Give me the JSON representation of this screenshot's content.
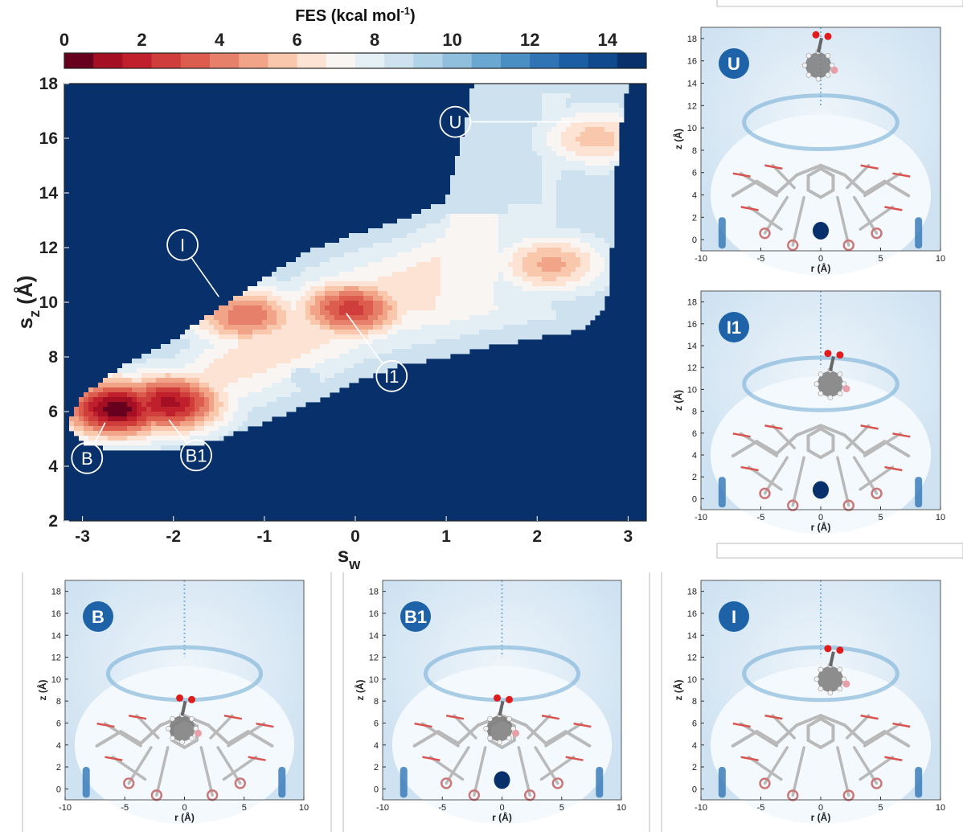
{
  "colorbar": {
    "title_main": "FES (kcal mol",
    "title_sup": "-1",
    "title_end": ")",
    "ticks": [
      "0",
      "2",
      "4",
      "6",
      "8",
      "10",
      "12",
      "14"
    ],
    "range": [
      0,
      15
    ],
    "colors": [
      "#67001f",
      "#a50f24",
      "#c0202c",
      "#cf3e3b",
      "#dc5d4d",
      "#e7806a",
      "#f1a488",
      "#f8c7ac",
      "#fce3d3",
      "#f8f5f3",
      "#e4eef5",
      "#cde2ee",
      "#b1d3e7",
      "#8fbfdd",
      "#6aa8d1",
      "#4a8fc4",
      "#2f75b5",
      "#1c5ea4",
      "#104a8e",
      "#08306b"
    ]
  },
  "chart_data": {
    "type": "heatmap",
    "title": "",
    "xlabel": "s",
    "xlabel_sub": "w",
    "ylabel": "s",
    "ylabel_sub": "z",
    "ylabel_unit": " (Å)",
    "xlim": [
      -3.2,
      3.2
    ],
    "ylim": [
      2,
      18
    ],
    "xticks": [
      "-3",
      "-2",
      "-1",
      "0",
      "1",
      "2",
      "3"
    ],
    "yticks": [
      "2",
      "4",
      "6",
      "8",
      "10",
      "12",
      "14",
      "16",
      "18"
    ],
    "states": [
      {
        "name": "U",
        "x": 1.1,
        "y": 16.6,
        "target_x": 2.5,
        "target_y": 16.6
      },
      {
        "name": "I",
        "x": -1.9,
        "y": 12.1,
        "target_x": -1.5,
        "target_y": 10.2
      },
      {
        "name": "I1",
        "x": 0.4,
        "y": 7.3,
        "target_x": -0.1,
        "target_y": 9.6
      },
      {
        "name": "B",
        "x": -2.95,
        "y": 4.3,
        "target_x": -2.75,
        "target_y": 5.6
      },
      {
        "name": "B1",
        "x": -1.75,
        "y": 4.4,
        "target_x": -2.05,
        "target_y": 5.7
      }
    ],
    "basins": [
      {
        "x": -2.62,
        "y": 6.1,
        "depth": 0.2
      },
      {
        "x": -2.05,
        "y": 6.3,
        "depth": 1.2
      },
      {
        "x": -0.05,
        "y": 9.75,
        "depth": 2.6
      },
      {
        "x": -1.2,
        "y": 9.5,
        "depth": 3.8
      },
      {
        "x": 2.15,
        "y": 11.4,
        "depth": 5.0
      },
      {
        "x": 2.65,
        "y": 16.0,
        "depth": 5.6
      },
      {
        "x": 1.15,
        "y": 16.7,
        "depth": 10.0
      }
    ]
  },
  "panels": [
    {
      "id": "U",
      "label": "U",
      "xticks": [
        "-10",
        "-5",
        "0",
        "5",
        "10"
      ],
      "yticks": [
        "0",
        "2",
        "4",
        "6",
        "8",
        "10",
        "12",
        "14",
        "16",
        "18"
      ],
      "xlabel": "r (Å)",
      "ylabel": "z (Å)"
    },
    {
      "id": "I1",
      "label": "I1",
      "xticks": [
        "-10",
        "-5",
        "0",
        "5",
        "10"
      ],
      "yticks": [
        "0",
        "2",
        "4",
        "6",
        "8",
        "10",
        "12",
        "14",
        "16",
        "18"
      ],
      "xlabel": "r (Å)",
      "ylabel": "z (Å)"
    },
    {
      "id": "B",
      "label": "B",
      "xticks": [
        "-10",
        "-5",
        "0",
        "5",
        "10"
      ],
      "yticks": [
        "0",
        "2",
        "4",
        "6",
        "8",
        "10",
        "12",
        "14",
        "16",
        "18"
      ],
      "xlabel": "r (Å)",
      "ylabel": "z (Å)"
    },
    {
      "id": "B1",
      "label": "B1",
      "xticks": [
        "-10",
        "-5",
        "0",
        "5",
        "10"
      ],
      "yticks": [
        "0",
        "2",
        "4",
        "6",
        "8",
        "10",
        "12",
        "14",
        "16",
        "18"
      ],
      "xlabel": "r (Å)",
      "ylabel": "z (Å)"
    },
    {
      "id": "I",
      "label": "I",
      "xticks": [
        "-10",
        "-5",
        "0",
        "5",
        "10"
      ],
      "yticks": [
        "0",
        "2",
        "4",
        "6",
        "8",
        "10",
        "12",
        "14",
        "16",
        "18"
      ],
      "xlabel": "r (Å)",
      "ylabel": "z (Å)"
    }
  ]
}
